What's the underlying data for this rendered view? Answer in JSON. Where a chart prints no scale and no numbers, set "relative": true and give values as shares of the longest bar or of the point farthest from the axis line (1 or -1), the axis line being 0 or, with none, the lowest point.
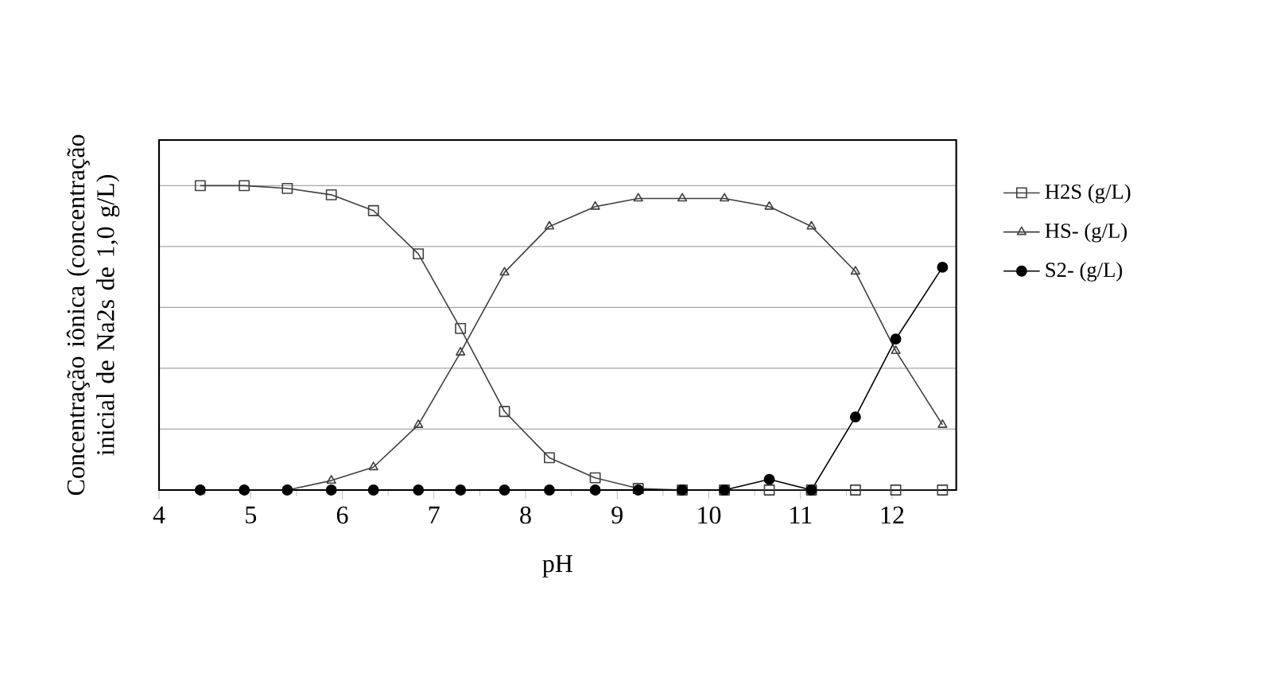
{
  "chart_data": {
    "type": "line",
    "relative": true,
    "xlabel": "pH",
    "ylabel": "Concentração iônica (concentração inicial de Na2s de 1,0 g/L)",
    "x": [
      4.45,
      4.93,
      5.4,
      5.88,
      6.34,
      6.83,
      7.29,
      7.77,
      8.26,
      8.76,
      9.23,
      9.71,
      10.17,
      10.66,
      11.12,
      11.6,
      12.04,
      12.55
    ],
    "xlim": [
      4,
      12.7
    ],
    "xticks": [
      4,
      5,
      6,
      7,
      8,
      9,
      10,
      11,
      12
    ],
    "grid": "y",
    "legend": "right",
    "line_style": "solid",
    "series": [
      {
        "name": "H2S (g/L)",
        "color": "#404040",
        "marker": "square",
        "values": [
          1,
          1,
          0.991,
          0.97,
          0.918,
          0.776,
          0.531,
          0.258,
          0.106,
          0.04,
          0.005,
          0,
          0,
          0,
          0,
          0,
          0,
          0
        ]
      },
      {
        "name": "HS- (g/L)",
        "color": "#404040",
        "marker": "triangle",
        "values": [
          0,
          0,
          0,
          0.031,
          0.075,
          0.214,
          0.452,
          0.715,
          0.866,
          0.931,
          0.958,
          0.958,
          0.958,
          0.931,
          0.866,
          0.718,
          0.457,
          0.214
        ]
      },
      {
        "name": "S2- (g/L)",
        "color": "#000000",
        "marker": "circle",
        "values": [
          0,
          0,
          0,
          0,
          0,
          0,
          0,
          0,
          0,
          0,
          0,
          0,
          0,
          0.035,
          0,
          0.24,
          0.496,
          0.732
        ]
      }
    ]
  }
}
